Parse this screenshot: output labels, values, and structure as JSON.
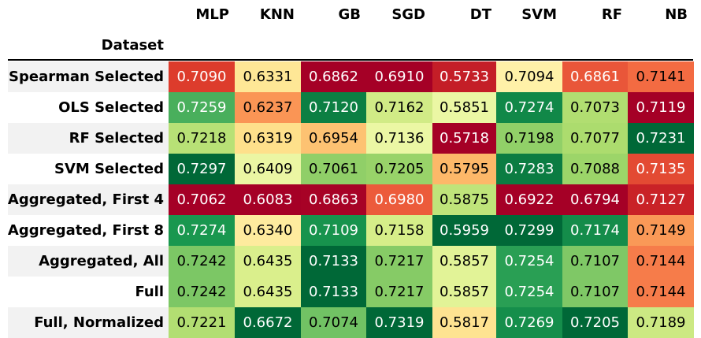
{
  "chart_data": {
    "type": "heatmap",
    "index_name": "Dataset",
    "columns": [
      "MLP",
      "KNN",
      "GB",
      "SGD",
      "DT",
      "SVM",
      "RF",
      "NB"
    ],
    "rows": [
      "Spearman Selected",
      "OLS Selected",
      "RF Selected",
      "SVM Selected",
      "Aggregated, First 4",
      "Aggregated, First 8",
      "Aggregated, All",
      "Full",
      "Full, Normalized"
    ],
    "values": [
      [
        0.709,
        0.6331,
        0.6862,
        0.691,
        0.5733,
        0.7094,
        0.6861,
        0.7141
      ],
      [
        0.7259,
        0.6237,
        0.712,
        0.7162,
        0.5851,
        0.7274,
        0.7073,
        0.7119
      ],
      [
        0.7218,
        0.6319,
        0.6954,
        0.7136,
        0.5718,
        0.7198,
        0.7077,
        0.7231
      ],
      [
        0.7297,
        0.6409,
        0.7061,
        0.7205,
        0.5795,
        0.7283,
        0.7088,
        0.7135
      ],
      [
        0.7062,
        0.6083,
        0.6863,
        0.698,
        0.5875,
        0.6922,
        0.6794,
        0.7127
      ],
      [
        0.7274,
        0.634,
        0.7109,
        0.7158,
        0.5959,
        0.7299,
        0.7174,
        0.7149
      ],
      [
        0.7242,
        0.6435,
        0.7133,
        0.7217,
        0.5857,
        0.7254,
        0.7107,
        0.7144
      ],
      [
        0.7242,
        0.6435,
        0.7133,
        0.7217,
        0.5857,
        0.7254,
        0.7107,
        0.7144
      ],
      [
        0.7221,
        0.6672,
        0.7074,
        0.7319,
        0.5817,
        0.7269,
        0.7205,
        0.7189
      ]
    ],
    "display": [
      [
        "0.7090",
        "0.6331",
        "0.6862",
        "0.6910",
        "0.5733",
        "0.7094",
        "0.6861",
        "0.7141"
      ],
      [
        "0.7259",
        "0.6237",
        "0.7120",
        "0.7162",
        "0.5851",
        "0.7274",
        "0.7073",
        "0.7119"
      ],
      [
        "0.7218",
        "0.6319",
        "0.6954",
        "0.7136",
        "0.5718",
        "0.7198",
        "0.7077",
        "0.7231"
      ],
      [
        "0.7297",
        "0.6409",
        "0.7061",
        "0.7205",
        "0.5795",
        "0.7283",
        "0.7088",
        "0.7135"
      ],
      [
        "0.7062",
        "0.6083",
        "0.6863",
        "0.6980",
        "0.5875",
        "0.6922",
        "0.6794",
        "0.7127"
      ],
      [
        "0.7274",
        "0.6340",
        "0.7109",
        "0.7158",
        "0.5959",
        "0.7299",
        "0.7174",
        "0.7149"
      ],
      [
        "0.7242",
        "0.6435",
        "0.7133",
        "0.7217",
        "0.5857",
        "0.7254",
        "0.7107",
        "0.7144"
      ],
      [
        "0.7242",
        "0.6435",
        "0.7133",
        "0.7217",
        "0.5857",
        "0.7254",
        "0.7107",
        "0.7144"
      ],
      [
        "0.7221",
        "0.6672",
        "0.7074",
        "0.7319",
        "0.5817",
        "0.7269",
        "0.7205",
        "0.7189"
      ]
    ],
    "colormap": "RdYlGn",
    "value_range": [
      0.5718,
      0.7319
    ],
    "grid": false,
    "stripe_color": "#f2f2f2"
  }
}
